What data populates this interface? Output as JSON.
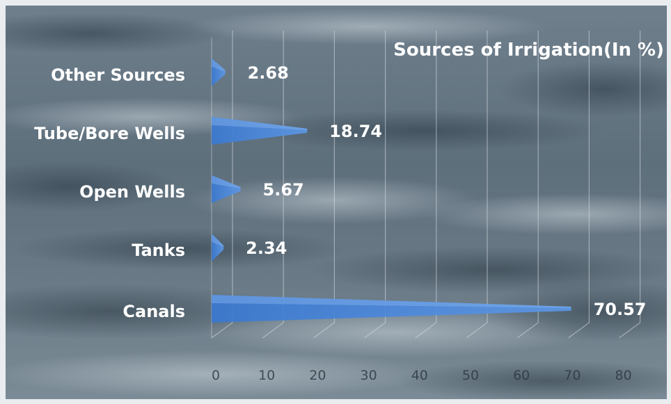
{
  "chart_data": {
    "type": "bar",
    "title": "Sources of Irrigation(In %)",
    "categories": [
      "Other Sources",
      "Tube/Bore Wells",
      "Open Wells",
      "Tanks",
      "Canals"
    ],
    "values": [
      2.68,
      18.74,
      5.67,
      2.34,
      70.57
    ],
    "value_labels": [
      "2.68",
      "18.74",
      "5.67",
      "2.34",
      "70.57"
    ],
    "x_ticks": [
      "0",
      "10",
      "20",
      "30",
      "40",
      "50",
      "60",
      "70",
      "80"
    ],
    "xlim": [
      0,
      80
    ],
    "xlabel": "",
    "ylabel": "",
    "orientation": "horizontal",
    "grid": true,
    "legend": "none",
    "colors": {
      "bar": "#3f7fd6",
      "bar_light": "#7fb0ee",
      "text": "#ffffff",
      "grid": "#d7dde2",
      "background": "#667683"
    }
  }
}
